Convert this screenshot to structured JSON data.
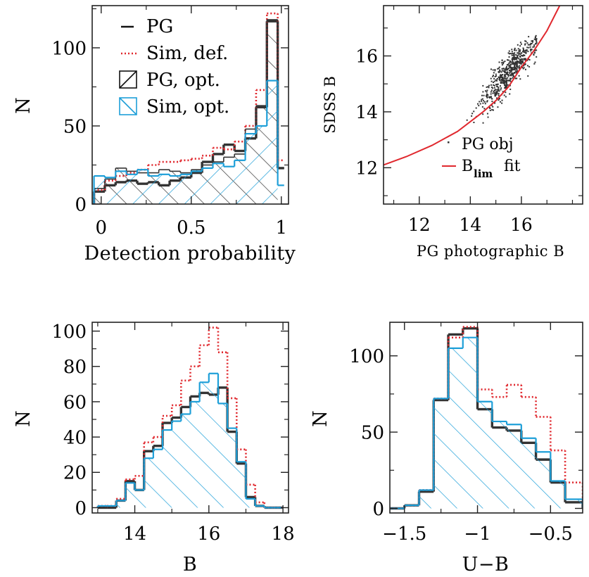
{
  "colors": {
    "pg": "#333333",
    "sim": "#e0282e",
    "opt_pg": "#333333",
    "opt_sim": "#1e9fd8"
  },
  "chart_data": [
    {
      "type": "histogram",
      "xlabel": "Detection probability",
      "ylabel": "N",
      "xlim": [
        -0.05,
        1.04
      ],
      "ylim": [
        0,
        127
      ],
      "xticks": [
        0,
        0.5,
        1
      ],
      "xticklabels": [
        "0",
        "0.5",
        "1"
      ],
      "yticks": [
        0,
        50,
        100
      ],
      "yticklabels": [
        "0",
        "50",
        "100"
      ],
      "bin_edges": [
        -0.04,
        0.02,
        0.08,
        0.14,
        0.2,
        0.26,
        0.32,
        0.38,
        0.44,
        0.5,
        0.56,
        0.62,
        0.68,
        0.74,
        0.8,
        0.86,
        0.92,
        0.98
      ],
      "legend": {
        "position": "top-left",
        "entries": [
          {
            "label": "PG",
            "style": "line",
            "series": "pg"
          },
          {
            "label": "Sim, def.",
            "style": "dotted",
            "series": "sim"
          },
          {
            "label": "PG, opt.",
            "style": "hatch-right",
            "series": "opt_pg"
          },
          {
            "label": "Sim, opt.",
            "style": "hatch-left",
            "series": "opt_sim"
          }
        ]
      },
      "series": [
        {
          "key": "pg",
          "values": [
            8,
            12,
            14,
            15,
            13,
            14,
            12,
            15,
            17,
            20,
            27,
            32,
            38,
            34,
            42,
            62,
            117
          ],
          "tail": {
            "x": 1.0,
            "value": 23
          }
        },
        {
          "key": "sim",
          "values": [
            9,
            15,
            18,
            20,
            22,
            25,
            27,
            27,
            28,
            29,
            31,
            36,
            35,
            40,
            50,
            73,
            122
          ],
          "tail": {
            "x": 1.0,
            "value": 28
          }
        },
        {
          "key": "opt_pg",
          "values": [
            10,
            16,
            23,
            21,
            20,
            20,
            22,
            21,
            20,
            22,
            25,
            27,
            30,
            32,
            48,
            63,
            118
          ],
          "tail": {
            "x": 1.0,
            "value": 23
          }
        },
        {
          "key": "opt_sim",
          "values": [
            18,
            17,
            21,
            19,
            22,
            18,
            19,
            18,
            19,
            21,
            23,
            26,
            24,
            28,
            45,
            50,
            79
          ],
          "tail": {
            "x": 1.0,
            "value": 12
          }
        }
      ]
    },
    {
      "type": "scatter",
      "xlabel": "PG photographic B",
      "ylabel": "SDSS B",
      "xlim": [
        10.6,
        18.4
      ],
      "ylim": [
        10.7,
        17.8
      ],
      "xticks": [
        12,
        14,
        16
      ],
      "xticklabels": [
        "12",
        "14",
        "16"
      ],
      "yticks": [
        12,
        14,
        16
      ],
      "yticklabels": [
        "12",
        "14",
        "16"
      ],
      "legend": {
        "position": "bottom-right",
        "entries": [
          {
            "label": "PG obj",
            "style": "dot",
            "color": "#333333"
          },
          {
            "label": "B",
            "sub": "lim",
            "suffix": "fit",
            "style": "line",
            "color": "#e0282e"
          }
        ]
      },
      "points": {
        "count": 560,
        "center_x": 15.5,
        "center_y": 15.4,
        "slope": 1.0,
        "spread_x": 0.65,
        "spread_y": 0.4
      },
      "fit_curve": {
        "x": [
          10.6,
          11.5,
          12.5,
          13.5,
          14.5,
          15.0,
          15.5,
          16.0,
          16.5,
          17.0,
          17.5
        ],
        "y": [
          12.1,
          12.4,
          12.8,
          13.3,
          14.0,
          14.4,
          14.9,
          15.6,
          16.2,
          16.9,
          17.8
        ]
      }
    },
    {
      "type": "histogram",
      "xlabel": "B",
      "ylabel": "N",
      "xlim": [
        12.85,
        18.15
      ],
      "ylim": [
        -3,
        105
      ],
      "xticks": [
        14,
        16,
        18
      ],
      "xticklabels": [
        "14",
        "16",
        "18"
      ],
      "yticks": [
        0,
        20,
        40,
        60,
        80,
        100
      ],
      "yticklabels": [
        "0",
        "20",
        "40",
        "60",
        "80",
        "100"
      ],
      "bin_edges": [
        13.0,
        13.25,
        13.5,
        13.75,
        14.0,
        14.25,
        14.5,
        14.75,
        15.0,
        15.25,
        15.5,
        15.75,
        16.0,
        16.25,
        16.5,
        16.75,
        17.0,
        17.25,
        17.5,
        17.75,
        18.0
      ],
      "series": [
        {
          "key": "pg",
          "values": [
            0,
            0,
            4,
            15,
            10,
            32,
            35,
            48,
            51,
            57,
            63,
            65,
            64,
            68,
            43,
            25,
            6,
            1,
            0,
            0
          ]
        },
        {
          "key": "sim",
          "values": [
            1,
            1,
            5,
            16,
            18,
            37,
            40,
            52,
            58,
            72,
            80,
            92,
            102,
            88,
            62,
            33,
            13,
            3,
            0,
            0
          ]
        },
        {
          "key": "opt_sim",
          "values": [
            1,
            1,
            4,
            14,
            10,
            28,
            33,
            44,
            49,
            53,
            60,
            71,
            76,
            59,
            45,
            26,
            5,
            1,
            0,
            0
          ]
        }
      ]
    },
    {
      "type": "histogram",
      "xlabel": "U−B",
      "ylabel": "N",
      "xlim": [
        -1.6,
        -0.28
      ],
      "ylim": [
        -3,
        122
      ],
      "xticks": [
        -1.5,
        -1,
        -0.5
      ],
      "xticklabels": [
        "−1.5",
        "−1",
        "−0.5"
      ],
      "yticks": [
        0,
        50,
        100
      ],
      "yticklabels": [
        "0",
        "50",
        "100"
      ],
      "bin_edges": [
        -1.6,
        -1.5,
        -1.4,
        -1.3,
        -1.2,
        -1.1,
        -1.0,
        -0.9,
        -0.8,
        -0.7,
        -0.6,
        -0.5,
        -0.4,
        -0.28
      ],
      "series": [
        {
          "key": "pg",
          "values": [
            0,
            2,
            11,
            71,
            114,
            118,
            65,
            53,
            51,
            43,
            32,
            17,
            4
          ]
        },
        {
          "key": "sim",
          "values": [
            0,
            2,
            12,
            72,
            112,
            119,
            78,
            73,
            81,
            73,
            60,
            38,
            17
          ]
        },
        {
          "key": "opt_sim",
          "values": [
            0,
            2,
            12,
            72,
            105,
            112,
            70,
            57,
            55,
            46,
            37,
            18,
            6
          ]
        }
      ]
    }
  ]
}
